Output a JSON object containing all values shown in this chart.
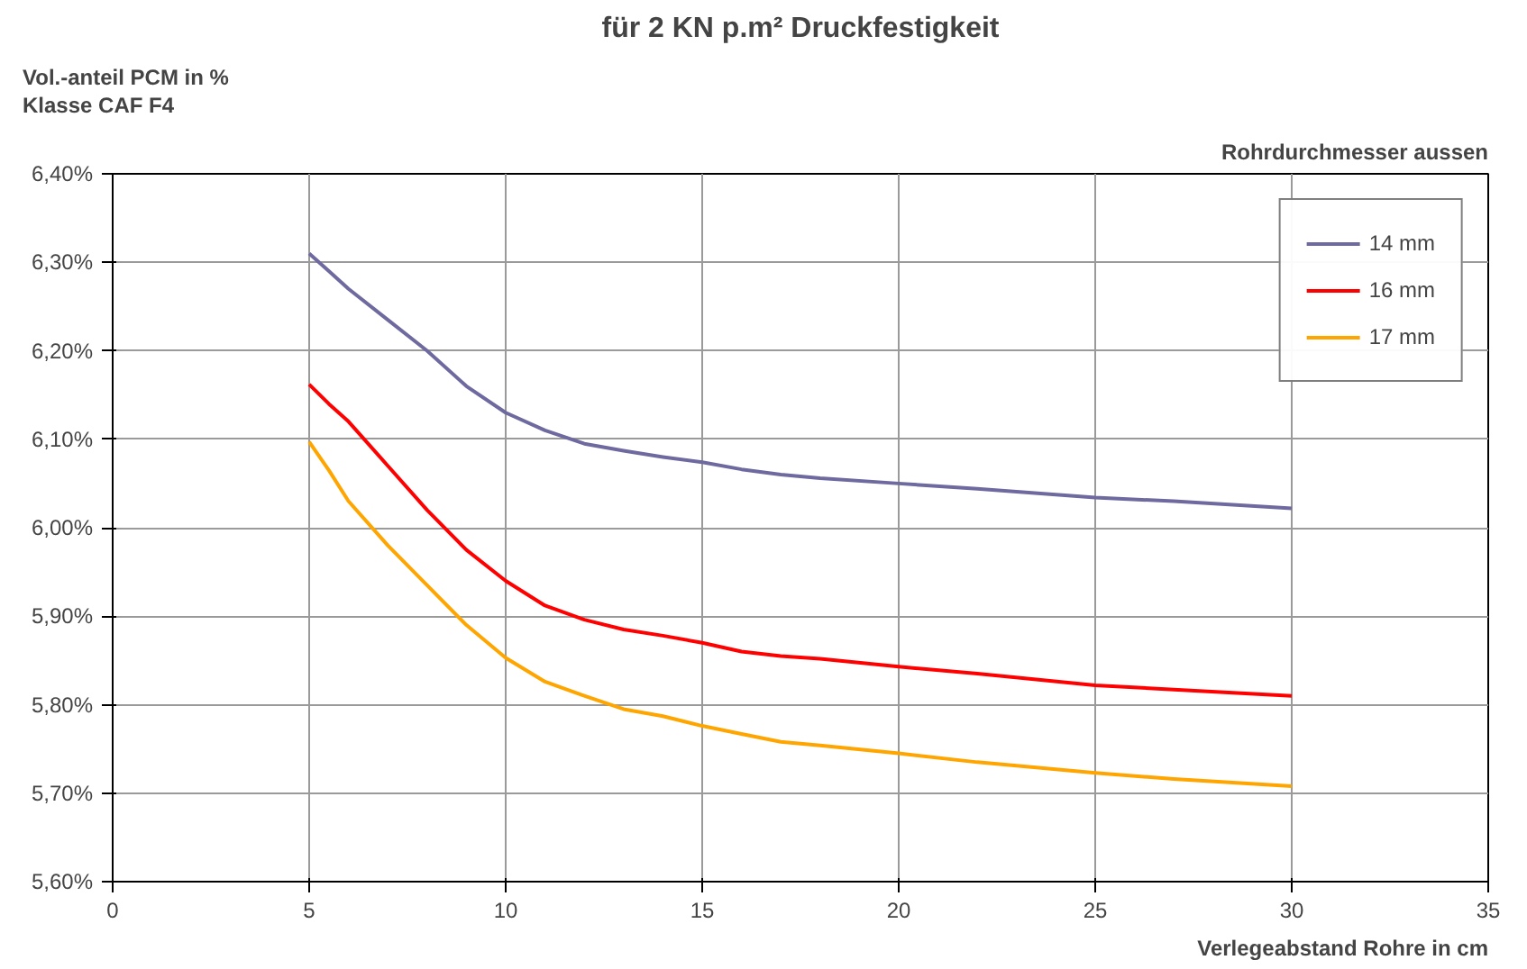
{
  "chart_data": {
    "type": "line",
    "title": "für 2 KN p.m² Druckfestigkeit",
    "ylabel": "Vol.-anteil PCM in %\nKlasse CAF F4",
    "xlabel": "Verlegeabstand Rohre in cm",
    "legend_title": "Rohrdurchmesser aussen",
    "x": [
      5,
      5.5,
      6,
      7,
      8,
      9,
      10,
      11,
      12,
      13,
      14,
      15,
      16,
      17,
      18,
      20,
      22,
      25,
      27,
      30
    ],
    "series": [
      {
        "name": "14 mm",
        "color": "#6e6aa0",
        "values": [
          6.31,
          6.29,
          6.27,
          6.235,
          6.2,
          6.16,
          6.13,
          6.11,
          6.095,
          6.087,
          6.08,
          6.074,
          6.066,
          6.06,
          6.056,
          6.05,
          6.044,
          6.034,
          6.03,
          6.022
        ]
      },
      {
        "name": "16 mm",
        "color": "#ff0000",
        "values": [
          6.162,
          6.14,
          6.12,
          6.07,
          6.02,
          5.975,
          5.94,
          5.912,
          5.896,
          5.885,
          5.878,
          5.87,
          5.86,
          5.855,
          5.852,
          5.843,
          5.835,
          5.822,
          5.817,
          5.81
        ]
      },
      {
        "name": "17 mm",
        "color": "#ffa500",
        "values": [
          6.097,
          6.065,
          6.03,
          5.98,
          5.935,
          5.89,
          5.853,
          5.826,
          5.81,
          5.795,
          5.787,
          5.776,
          5.767,
          5.758,
          5.754,
          5.745,
          5.735,
          5.723,
          5.716,
          5.708
        ]
      }
    ],
    "xlim": [
      0,
      35
    ],
    "xticks": [
      0,
      5,
      10,
      15,
      20,
      25,
      30,
      35
    ],
    "ylim": [
      5.6,
      6.4
    ],
    "yticks": [
      {
        "value": 5.6,
        "label": "5,60%"
      },
      {
        "value": 5.7,
        "label": "5,70%"
      },
      {
        "value": 5.8,
        "label": "5,80%"
      },
      {
        "value": 5.9,
        "label": "5,90%"
      },
      {
        "value": 6.0,
        "label": "6,00%"
      },
      {
        "value": 6.1,
        "label": "6,10%"
      },
      {
        "value": 6.2,
        "label": "6,20%"
      },
      {
        "value": 6.3,
        "label": "6,30%"
      },
      {
        "value": 6.4,
        "label": "6,40%"
      }
    ],
    "grid": true,
    "legend": "top right",
    "marker": "none",
    "line_style": "solid"
  }
}
